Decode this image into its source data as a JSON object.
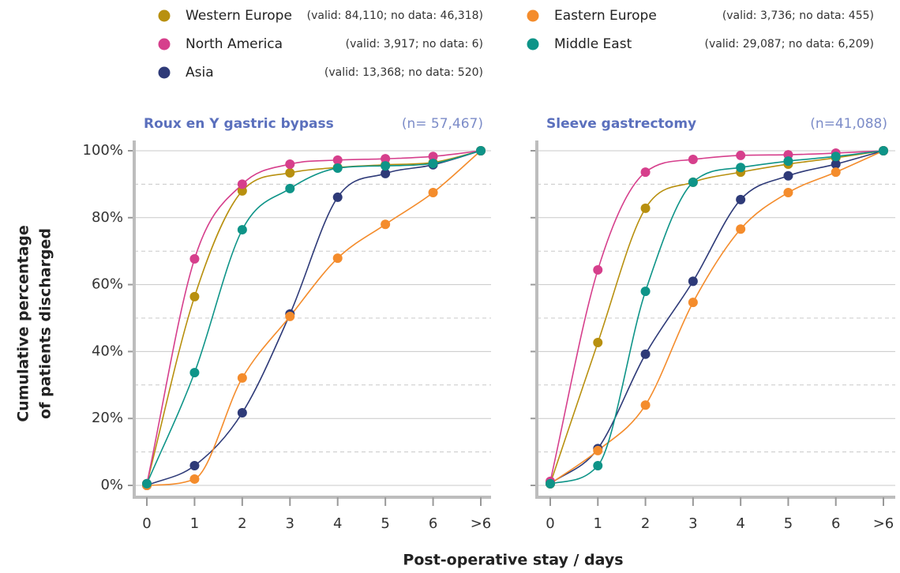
{
  "chart_data": [
    {
      "type": "line",
      "title": "Roux en Y gastric bypass",
      "subtitle": "(n= 57,467)",
      "xlabel": "Post-operative stay / days",
      "ylabel": [
        "Cumulative percentage",
        "of patients discharged"
      ],
      "categories": [
        "0",
        "1",
        "2",
        "3",
        "4",
        "5",
        "6",
        ">6"
      ],
      "ylim": [
        0,
        100
      ],
      "yticks": [
        {
          "value": 0,
          "label": "0%"
        },
        {
          "value": 20,
          "label": "20%"
        },
        {
          "value": 40,
          "label": "40%"
        },
        {
          "value": 60,
          "label": "60%"
        },
        {
          "value": 80,
          "label": "80%"
        },
        {
          "value": 100,
          "label": "100%"
        }
      ],
      "minor_yticks": [
        10,
        30,
        50,
        70,
        90
      ],
      "grid": true,
      "series": [
        {
          "name": "Western Europe",
          "note": "(valid: 84,110; no data: 46,318)",
          "color": "#b8900f",
          "values": [
            0.5,
            56.4,
            88,
            93.4,
            95,
            95.8,
            96.5,
            100
          ]
        },
        {
          "name": "North America",
          "note": "(valid: 3,917; no data: 6)",
          "color": "#d63f8c",
          "values": [
            0.5,
            67.7,
            90,
            96,
            97.2,
            97.6,
            98.3,
            100
          ]
        },
        {
          "name": "Asia",
          "note": "(valid: 13,368; no data: 520)",
          "color": "#2e3a78",
          "values": [
            0,
            5.9,
            21.7,
            51.2,
            86.1,
            93.2,
            95.8,
            100
          ]
        },
        {
          "name": "Eastern Europe",
          "note": "(valid: 3,736; no data: 455)",
          "color": "#f48c2c",
          "values": [
            0,
            1.9,
            32.1,
            50.5,
            67.9,
            78,
            87.5,
            100
          ]
        },
        {
          "name": "Middle East",
          "note": "(valid: 29,087; no data: 6,209)",
          "color": "#0e9488",
          "values": [
            0.5,
            33.7,
            76.4,
            88.7,
            94.8,
            95.5,
            96.2,
            100
          ]
        }
      ]
    },
    {
      "type": "line",
      "title": "Sleeve gastrectomy",
      "subtitle": "(n=41,088)",
      "categories": [
        "0",
        "1",
        "2",
        "3",
        "4",
        "5",
        "6",
        ">6"
      ],
      "ylim": [
        0,
        100
      ],
      "yticks": [
        0,
        20,
        40,
        60,
        80,
        100
      ],
      "minor_yticks": [
        10,
        30,
        50,
        70,
        90
      ],
      "grid": true,
      "series": [
        {
          "values": [
            0.5,
            42.7,
            82.8,
            90.6,
            93.6,
            96,
            97.9,
            100
          ]
        },
        {
          "values": [
            1.2,
            64.4,
            93.6,
            97.4,
            98.6,
            98.8,
            99.3,
            100
          ]
        },
        {
          "values": [
            0.5,
            11,
            39.2,
            61,
            85.4,
            92.5,
            96,
            100
          ]
        },
        {
          "values": [
            0.5,
            10.4,
            24,
            54.7,
            76.6,
            87.5,
            93.6,
            100
          ]
        },
        {
          "values": [
            0.5,
            5.9,
            58,
            90.6,
            95,
            96.9,
            98.3,
            100
          ]
        }
      ]
    }
  ]
}
